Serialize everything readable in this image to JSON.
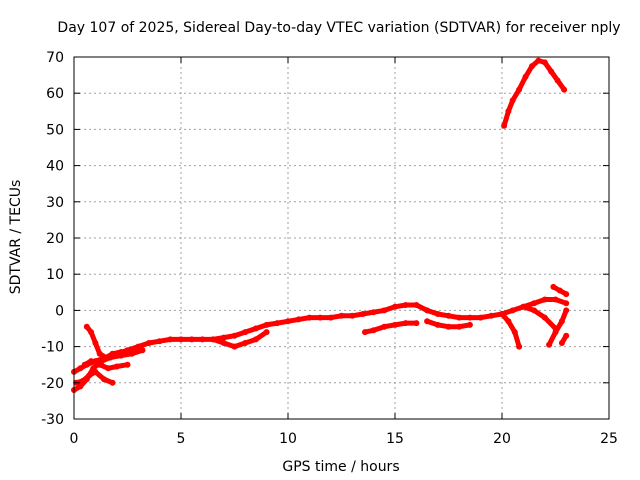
{
  "chart_data": {
    "type": "scatter",
    "title": "Day 107 of 2025, Sidereal Day-to-day VTEC variation (SDTVAR) for receiver nply",
    "xlabel": "GPS time / hours",
    "ylabel": "SDTVAR / TECUs",
    "xlim": [
      0,
      25
    ],
    "ylim": [
      -30,
      70
    ],
    "xticks": [
      0,
      5,
      10,
      15,
      20,
      25
    ],
    "yticks": [
      -30,
      -20,
      -10,
      0,
      10,
      20,
      30,
      40,
      50,
      60,
      70
    ],
    "grid": true,
    "series_color": "#ff0000",
    "series": [
      {
        "name": "track-main",
        "x": [
          0.0,
          0.3,
          0.6,
          1.0,
          1.5,
          2.0,
          2.5,
          3.0,
          3.5,
          4.0,
          4.5,
          5.0,
          5.5,
          6.0,
          6.5,
          7.0,
          7.5,
          8.0,
          8.5,
          9.0,
          9.5,
          10.0,
          10.5,
          11.0,
          11.5,
          12.0,
          12.5,
          13.0,
          13.5,
          14.0,
          14.5,
          15.0,
          15.5,
          16.0,
          16.5,
          17.0,
          17.5,
          18.0,
          18.5,
          19.0,
          19.5,
          20.0,
          20.5,
          21.0,
          21.5,
          22.0,
          22.5,
          23.0
        ],
        "y": [
          -17,
          -16,
          -15,
          -14,
          -13,
          -12,
          -11,
          -10,
          -9,
          -8.5,
          -8,
          -8,
          -8,
          -8,
          -8,
          -7.5,
          -7,
          -6,
          -5,
          -4,
          -3.5,
          -3,
          -2.5,
          -2,
          -2,
          -2,
          -1.5,
          -1.5,
          -1,
          -0.5,
          0,
          1,
          1.5,
          1.5,
          0,
          -1,
          -1.5,
          -2,
          -2,
          -2,
          -1.5,
          -1,
          0,
          1,
          2,
          3,
          3,
          2
        ]
      },
      {
        "name": "track-lower-a",
        "x": [
          0.0,
          0.3,
          0.6,
          0.9,
          1.3,
          1.7,
          2.2,
          2.7,
          3.2
        ],
        "y": [
          -22,
          -21,
          -19,
          -16,
          -14,
          -13,
          -12.5,
          -12,
          -11
        ]
      },
      {
        "name": "track-lower-b",
        "x": [
          0.1,
          0.4,
          0.7,
          1.0,
          1.4,
          1.8
        ],
        "y": [
          -20,
          -19.5,
          -18,
          -17,
          -19,
          -20
        ]
      },
      {
        "name": "track-early-c",
        "x": [
          0.6,
          0.8,
          1.0,
          1.2,
          1.5,
          1.8,
          2.2
        ],
        "y": [
          -4.5,
          -6,
          -9,
          -12,
          -13,
          -12,
          -11.5
        ]
      },
      {
        "name": "track-early-d",
        "x": [
          0.5,
          0.8,
          1.2,
          1.6,
          2.0,
          2.5
        ],
        "y": [
          -15,
          -14,
          -15,
          -16,
          -15.5,
          -15
        ]
      },
      {
        "name": "track-mid-dip",
        "x": [
          6.5,
          7.0,
          7.5,
          8.0,
          8.5,
          9.0
        ],
        "y": [
          -8,
          -9,
          -10,
          -9,
          -8,
          -6
        ]
      },
      {
        "name": "track-afternoon",
        "x": [
          13.6,
          14.0,
          14.5,
          15.0,
          15.5,
          16.0
        ],
        "y": [
          -6,
          -5.5,
          -4.5,
          -4,
          -3.5,
          -3.5
        ]
      },
      {
        "name": "track-evening-low",
        "x": [
          16.5,
          17.0,
          17.5,
          18.0,
          18.5
        ],
        "y": [
          -3,
          -4,
          -4.5,
          -4.5,
          -4
        ]
      },
      {
        "name": "track-drop-a",
        "x": [
          20.0,
          20.3,
          20.6,
          20.8
        ],
        "y": [
          -1,
          -3,
          -6,
          -10
        ]
      },
      {
        "name": "track-drop-b",
        "x": [
          21.0,
          21.5,
          22.0,
          22.5
        ],
        "y": [
          1,
          0,
          -2,
          -5
        ]
      },
      {
        "name": "track-late-c",
        "x": [
          22.2,
          22.5,
          22.8,
          23.0
        ],
        "y": [
          -9.5,
          -6,
          -3,
          0
        ]
      },
      {
        "name": "track-late-d",
        "x": [
          22.8,
          23.0
        ],
        "y": [
          -9,
          -7
        ]
      },
      {
        "name": "track-late-e",
        "x": [
          22.4,
          22.7,
          23.0
        ],
        "y": [
          6.5,
          5.5,
          4.5
        ]
      },
      {
        "name": "track-high-arc",
        "x": [
          20.1,
          20.3,
          20.5,
          20.8,
          21.1,
          21.4,
          21.7,
          22.0,
          22.3,
          22.6,
          22.9
        ],
        "y": [
          51,
          55,
          58,
          61,
          64.5,
          67.5,
          69,
          68.5,
          66,
          63.5,
          61
        ]
      }
    ]
  }
}
